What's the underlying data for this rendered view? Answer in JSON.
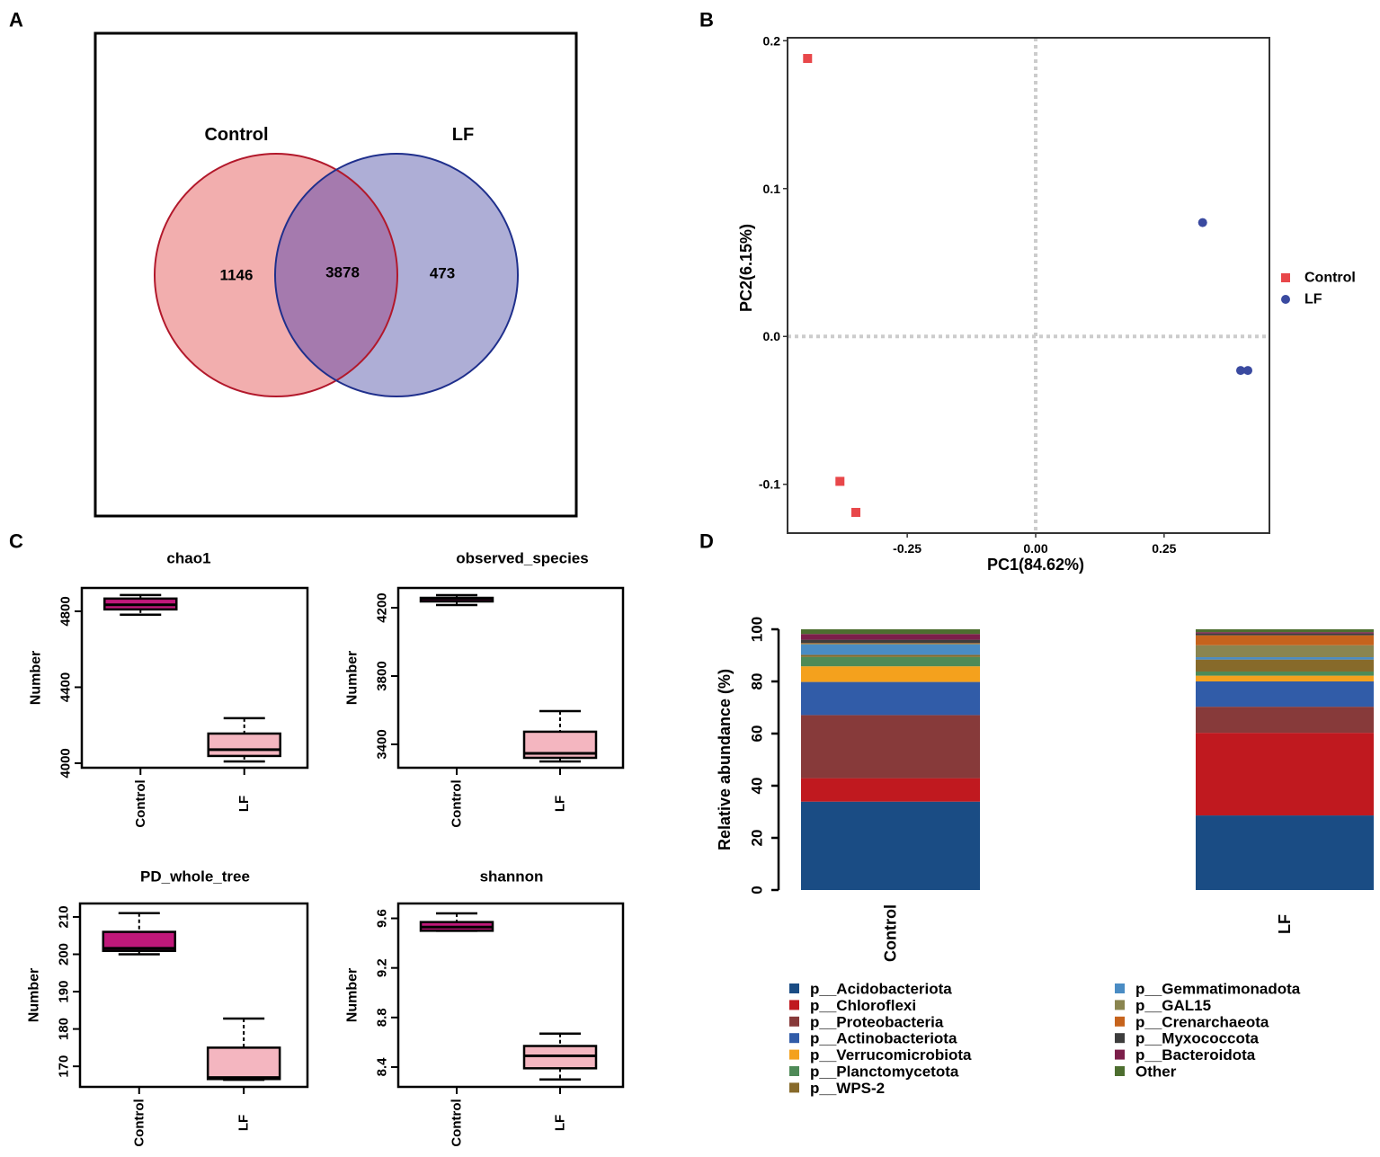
{
  "panel_letters": [
    "A",
    "B",
    "C",
    "D"
  ],
  "chart_data": [
    {
      "panel": "A",
      "type": "venn",
      "sets": [
        "Control",
        "LF"
      ],
      "values": {
        "Control_only": 1146,
        "shared": 3878,
        "LF_only": 473
      },
      "colors": {
        "Control": "#f2aeae",
        "LF": "#aeaed6",
        "overlap": "#a57aae",
        "Control_stroke": "#b2182b",
        "LF_stroke": "#1f2f8c"
      }
    },
    {
      "panel": "B",
      "type": "scatter",
      "xlabel": "PC1(84.62%)",
      "ylabel": "PC2(6.15%)",
      "xlim": [
        -0.483,
        0.455
      ],
      "ylim": [
        -0.133,
        0.202
      ],
      "xticks": [
        -0.25,
        0.0,
        0.25
      ],
      "xtick_labels": [
        "-0.25",
        "0.00",
        "0.25"
      ],
      "yticks": [
        -0.1,
        0.0,
        0.1,
        0.2
      ],
      "ytick_labels": [
        "-0.1",
        "0.0",
        "0.1",
        "0.2"
      ],
      "legend_position": "right",
      "series": [
        {
          "name": "Control",
          "color": "#e8474a",
          "marker": "square",
          "points": [
            [
              -0.444,
              0.188
            ],
            [
              -0.381,
              -0.098
            ],
            [
              -0.35,
              -0.119
            ]
          ]
        },
        {
          "name": "LF",
          "color": "#3a4aa0",
          "marker": "circle",
          "points": [
            [
              0.325,
              0.077
            ],
            [
              0.399,
              -0.023
            ],
            [
              0.413,
              -0.023
            ]
          ]
        }
      ]
    },
    {
      "panel": "C",
      "type": "boxplot",
      "categories": [
        "Control",
        "LF"
      ],
      "colors": [
        "#c0187a",
        "#f4b6c0"
      ],
      "ylabel": "Number",
      "plots": [
        {
          "title": "chao1",
          "ylim": [
            3976,
            4923
          ],
          "yticks": [
            4000,
            4400,
            4800
          ],
          "boxes": [
            {
              "min": 4782,
              "q1": 4810,
              "median": 4834,
              "q3": 4867,
              "max": 4886
            },
            {
              "min": 4009,
              "q1": 4038,
              "median": 4071,
              "q3": 4156,
              "max": 4237
            }
          ]
        },
        {
          "title": "observed_species",
          "ylim": [
            3263,
            4316
          ],
          "yticks": [
            3400,
            3800,
            4200
          ],
          "boxes": [
            {
              "min": 4216,
              "q1": 4237,
              "median": 4253,
              "q3": 4258,
              "max": 4274
            },
            {
              "min": 3300,
              "q1": 3321,
              "median": 3347,
              "q3": 3474,
              "max": 3595
            }
          ]
        },
        {
          "title": "PD_whole_tree",
          "ylim": [
            164.5,
            213.6
          ],
          "yticks": [
            170,
            180,
            190,
            200,
            210
          ],
          "boxes": [
            {
              "min": 200.0,
              "q1": 200.9,
              "median": 201.6,
              "q3": 206.0,
              "max": 211.0
            },
            {
              "min": 166.4,
              "q1": 166.6,
              "median": 167.0,
              "q3": 175.0,
              "max": 182.8
            }
          ]
        },
        {
          "title": "shannon",
          "ylim": [
            8.24,
            9.72
          ],
          "yticks": [
            8.4,
            8.8,
            9.2,
            9.6
          ],
          "boxes": [
            {
              "min": 9.5,
              "q1": 9.5,
              "median": 9.53,
              "q3": 9.57,
              "max": 9.64
            },
            {
              "min": 8.3,
              "q1": 8.39,
              "median": 8.49,
              "q3": 8.57,
              "max": 8.67
            }
          ]
        }
      ]
    },
    {
      "panel": "D",
      "type": "bar",
      "stacked": true,
      "categories": [
        "Control",
        "LF"
      ],
      "ylabel": "Relative abundance (%)",
      "ylim": [
        0,
        100
      ],
      "yticks": [
        0,
        20,
        40,
        60,
        80,
        100
      ],
      "legend_position": "bottom",
      "series": [
        {
          "name": "p__Acidobacteriota",
          "color": "#1a4c84",
          "values": [
            33.9,
            28.6
          ]
        },
        {
          "name": "p__Chloroflexi",
          "color": "#c0191f",
          "values": [
            9.0,
            31.7
          ]
        },
        {
          "name": "p__Proteobacteria",
          "color": "#873a3a",
          "values": [
            24.2,
            10.0
          ]
        },
        {
          "name": "p__Actinobacteriota",
          "color": "#315ca8",
          "values": [
            12.7,
            9.7
          ]
        },
        {
          "name": "p__Verrucomicrobiota",
          "color": "#f4a11d",
          "values": [
            6.0,
            2.2
          ]
        },
        {
          "name": "p__Planctomycetota",
          "color": "#4e8a57",
          "values": [
            3.6,
            1.6
          ]
        },
        {
          "name": "p__WPS-2",
          "color": "#876a2a",
          "values": [
            0.8,
            4.6
          ]
        },
        {
          "name": "p__Gemmatimonadota",
          "color": "#4a8cc4",
          "values": [
            4.0,
            0.9
          ]
        },
        {
          "name": "p__GAL15",
          "color": "#8a8550",
          "values": [
            0.3,
            4.6
          ]
        },
        {
          "name": "p__Crenarchaeota",
          "color": "#c6631c",
          "values": [
            0.2,
            3.8
          ]
        },
        {
          "name": "p__Myxococcota",
          "color": "#3d3d3d",
          "values": [
            1.3,
            0.7
          ]
        },
        {
          "name": "p__Bacteroidota",
          "color": "#7c1f4a",
          "values": [
            2.2,
            0.5
          ]
        },
        {
          "name": "Other",
          "color": "#4d6e2f",
          "values": [
            1.8,
            1.1
          ]
        }
      ]
    }
  ]
}
